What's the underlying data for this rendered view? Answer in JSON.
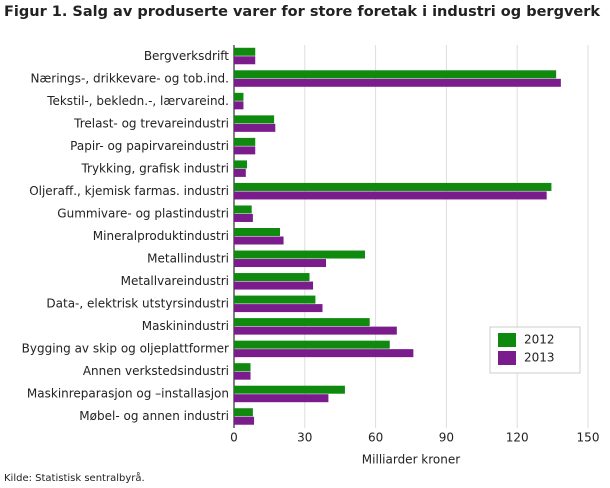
{
  "chart_data": {
    "type": "barh",
    "title": "Figur 1. Salg av produserte varer for store foretak i industri og bergverk",
    "x_label": "Milliarder kroner",
    "source": "Kilde: Statistisk sentralbyrå.",
    "categories": [
      "Bergverksdrift",
      "Nærings-, drikkevare- og tob.ind.",
      "Tekstil-, bekledn.-, lærvareind.",
      "Trelast- og trevareindustri",
      "Papir- og papirvareindustri",
      "Trykking, grafisk industri",
      "Oljeraff., kjemisk farmas. industri",
      "Gummivare- og plastindustri",
      "Mineralproduktindustri",
      "Metallindustri",
      "Metallvareindustri",
      "Data-, elektrisk utstyrsindustri",
      "Maskinindustri",
      "Bygging av skip og oljeplattformer",
      "Annen verkstedsindustri",
      "Maskinreparasjon og –installasjon",
      "Møbel- og annen industri"
    ],
    "series": [
      {
        "name": "2012",
        "color": "#0f8a0f",
        "values": [
          9,
          136.5,
          4,
          17,
          9,
          5.5,
          134.5,
          7.5,
          19.5,
          55.5,
          32,
          34.5,
          57.5,
          66,
          7,
          47,
          8
        ]
      },
      {
        "name": "2013",
        "color": "#7b1c8c",
        "values": [
          9,
          138.5,
          4,
          17.5,
          9,
          5,
          132.5,
          8,
          21,
          39,
          33.5,
          37.5,
          69,
          76,
          7,
          40,
          8.5
        ]
      }
    ],
    "xlim": [
      0,
      150
    ],
    "xticks": [
      0,
      30,
      60,
      90,
      120,
      150
    ],
    "grid": true,
    "legend": "bottom-right"
  }
}
